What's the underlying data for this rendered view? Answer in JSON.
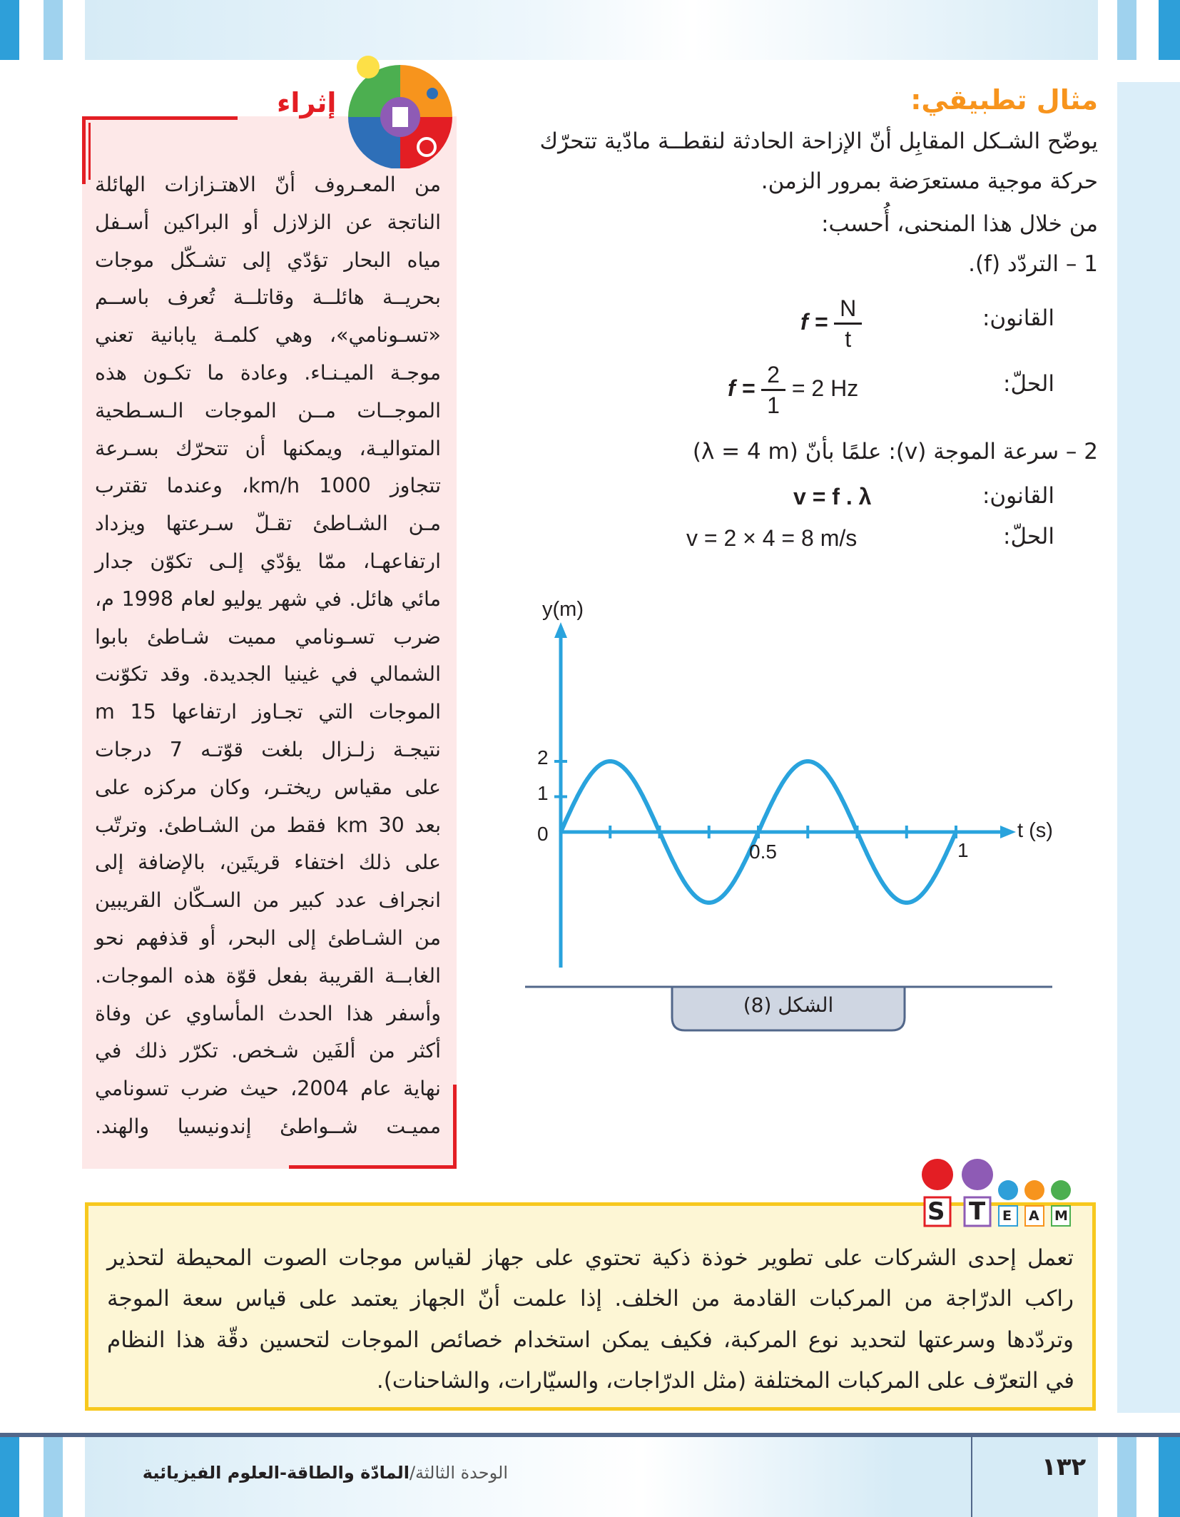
{
  "example": {
    "heading": "مثال تطبيقي:",
    "lines": [
      "يوضّح الشـكل المقابِل أنّ الإزاحة الحادثة لنقطــة مادّية تتحرّك",
      "حركة موجية مستعرَضة بمرور الزمن.",
      "من خلال هذا المنحنى، أُحسب:",
      "1 – التردّد (f)."
    ],
    "q1": {
      "law_label": "القانون:",
      "law_lhs": "f =",
      "law_num": "N",
      "law_den": "t",
      "solution_label": "الحلّ:",
      "sol_lhs": "f =",
      "sol_num": "2",
      "sol_den": "1",
      "sol_rhs": "= 2 Hz"
    },
    "q2": {
      "title": "2 – سرعة الموجة (v): علمًا بأنّ (λ = 4 m)",
      "law_label": "القانون:",
      "law": "v = f . λ",
      "solution_label": "الحلّ:",
      "solution": "v = 2 × 4 = 8 m/s"
    }
  },
  "figure": {
    "y_label": "y(m)",
    "x_label": "t (s)",
    "y_ticks": [
      "2",
      "1",
      "0"
    ],
    "x_tick_labels": [
      "0.5",
      "1"
    ],
    "amplitude_m": 2,
    "frequency_hz": 2,
    "t_range": [
      0,
      1
    ],
    "caption": "الشكل (8)",
    "curve_color": "#29a3dd"
  },
  "enrichment": {
    "title": "إثراء",
    "lines": [
      "من المعـروف أنّ الاهتـزازات الهائلة",
      "الناتجة عن الزلازل أو البراكين أسـفل",
      "مياه البحار تؤدّي إلى تشـكّل موجات",
      "بحريــة هائلــة وقاتلــة تُعرف باســم",
      "«تسـونامي»، وهي كلمـة يابانية تعني",
      "موجـة الميـنـاء. وعادة ما تكـون هذه",
      "الموجــات مــن الموجات الـسـطحية",
      "المتواليـة، ويمكنها أن تتحرّك بسـرعة",
      "تتجاوز 1000 km/h، وعندما تقترب",
      "مـن الشـاطئ تقـلّ سـرعتها ويزداد",
      "ارتفاعهـا، ممّا يؤدّي إلـى تكوّن جدار",
      "مائي هائل. في شهر يوليو لعام 1998 م،",
      "ضرب تسـونامي مميت شـاطئ بابوا",
      "الشمالي في غينيا الجديدة. وقد تكوّنت",
      "الموجات التي تجـاوز ارتفاعها 15 m",
      "نتيجـة زلـزال بلغت قوّتـه 7 درجات",
      "على مقياس ريختـر، وكان مركزه على",
      "بعد 30 km فقط من الشـاطئ. وترتّب",
      "على ذلك اختفاء قريتَين، بالإضافة إلى",
      "انجراف عدد كبير من السـكّان القريبين",
      "من الشـاطئ إلى البحر، أو قذفهم نحو",
      "الغابــة القريبة بفعل قوّة هذه الموجات.",
      "وأسفر هذا الحدث المأساوي عن وفاة",
      "أكثر من ألفَين شـخص. تكرّر ذلك في",
      "نهاية عام 2004، حيث ضرب تسونامي",
      "مميـت شــواطئ إندونيسيا والهند."
    ]
  },
  "steam": {
    "letters": [
      "S",
      "T",
      "E",
      "A",
      "M"
    ],
    "lines": [
      "تعمل إحدى الشركات على تطوير خوذة ذكية تحتوي على جهاز لقياس موجات الصوت المحيطة لتحذير",
      "راكب الدرّاجة من المركبات القادمة من الخلف. إذا علمت أنّ الجهاز يعتمد على قياس سعة الموجة",
      "وتردّدها وسرعتها لتحديد نوع المركبة، فكيف يمكن استخدام خصائص الموجات لتحسين دقّة هذا النظام",
      "في التعرّف على المركبات المختلفة (مثل الدرّاجات، والسيّارات، والشاحنات)."
    ]
  },
  "footer": {
    "page_number": "١٣٢",
    "unit_prefix": "الوحدة الثالثة/",
    "unit_title": "المادّة والطاقة-العلوم الفيزيائية"
  },
  "colors": {
    "heading": "#f7941d",
    "accent_blue": "#2e9fd9",
    "enrichment_bg": "#fde8e8",
    "enrichment_border": "#e31e24",
    "steam_border": "#f7c81e"
  }
}
